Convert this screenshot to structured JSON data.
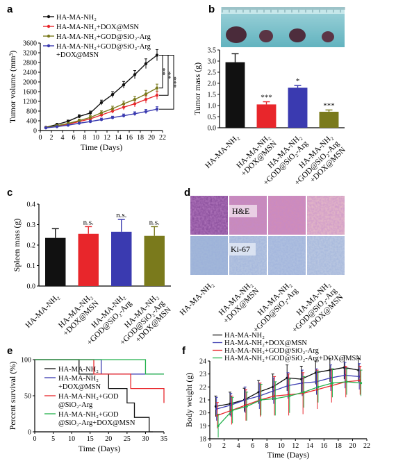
{
  "panels": {
    "a": "a",
    "b": "b",
    "c": "c",
    "d": "d",
    "e": "e",
    "f": "f"
  },
  "colors": {
    "black": "#111111",
    "red": "#e8262b",
    "blue": "#3a3ab0",
    "olive": "#7a7a1c",
    "green": "#22b14c",
    "axis": "#000000"
  },
  "chart_data": [
    {
      "id": "a",
      "type": "line",
      "xlabel": "Time (Days)",
      "ylabel": "Tumor volume (mm³)",
      "xlim": [
        0,
        22
      ],
      "ylim": [
        0,
        3600
      ],
      "xticks": [
        "0",
        "2",
        "4",
        "6",
        "8",
        "10",
        "12",
        "14",
        "16",
        "18",
        "20",
        "22"
      ],
      "yticks": [
        "0",
        "400",
        "800",
        "1200",
        "1600",
        "2000",
        "2400",
        "2800",
        "3200",
        "3600"
      ],
      "x": [
        1,
        3,
        5,
        7,
        9,
        11,
        13,
        15,
        17,
        19,
        21
      ],
      "series": [
        {
          "name": "HA-MA-NH₂",
          "color": "#111111",
          "values": [
            130,
            250,
            380,
            580,
            720,
            1150,
            1480,
            1880,
            2300,
            2750,
            3100
          ],
          "err": [
            30,
            40,
            50,
            70,
            80,
            100,
            120,
            140,
            170,
            200,
            230
          ]
        },
        {
          "name": "HA-MA-NH₂+DOX@MSN",
          "color": "#e8262b",
          "values": [
            120,
            190,
            260,
            370,
            480,
            640,
            800,
            960,
            1100,
            1280,
            1450
          ],
          "err": [
            20,
            30,
            40,
            50,
            60,
            80,
            90,
            110,
            130,
            150,
            170
          ]
        },
        {
          "name": "HA-MA-NH₂+GOD@SiO₂-Arg",
          "color": "#7a7a1c",
          "values": [
            120,
            200,
            290,
            410,
            540,
            730,
            900,
            1100,
            1280,
            1500,
            1750
          ],
          "err": [
            20,
            30,
            40,
            60,
            70,
            80,
            100,
            110,
            130,
            150,
            160
          ]
        },
        {
          "name": "HA-MA-NH₂+GOD@SiO₂-Arg +DOX@MSN",
          "color": "#3a3ab0",
          "values": [
            110,
            160,
            220,
            300,
            370,
            450,
            530,
            610,
            690,
            780,
            880
          ],
          "err": [
            15,
            20,
            30,
            40,
            50,
            60,
            60,
            70,
            80,
            90,
            100
          ]
        }
      ],
      "significance": [
        "**",
        "**",
        "***"
      ]
    },
    {
      "id": "b",
      "type": "bar",
      "ylabel": "Tumor mass (g)",
      "ylim": [
        0,
        3.5
      ],
      "yticks": [
        "0.0",
        "0.5",
        "1.0",
        "1.5",
        "2.0",
        "2.5",
        "3.0",
        "3.5"
      ],
      "categories": [
        [
          "HA-MA-NH₂"
        ],
        [
          "HA-MA-NH₂",
          "+DOX@MSN"
        ],
        [
          "HA-MA-NH₂",
          "+GOD@SiO₂-Arg"
        ],
        [
          "HA-MA-NH₂",
          "+GOD@SiO₂-Arg",
          "+DOX@MSN"
        ]
      ],
      "values": [
        2.95,
        1.05,
        1.8,
        0.72
      ],
      "err": [
        0.38,
        0.12,
        0.1,
        0.08
      ],
      "colors": [
        "#111111",
        "#e8262b",
        "#3a3ab0",
        "#7a7a1c"
      ],
      "significance": [
        "",
        "***",
        "*",
        "***"
      ]
    },
    {
      "id": "c",
      "type": "bar",
      "ylabel": "Spleen mass (g)",
      "ylim": [
        0,
        0.4
      ],
      "yticks": [
        "0.0",
        "0.1",
        "0.2",
        "0.3",
        "0.4"
      ],
      "categories": [
        [
          "HA-MA-NH₂"
        ],
        [
          "HA-MA-NH₂",
          "+DOX@MSN"
        ],
        [
          "HA-MA-NH₂",
          "+GOD@SiO₂-Arg"
        ],
        [
          "HA-MA-NH₂",
          "+GOD@SiO₂-Arg",
          "+DOX@MSN"
        ]
      ],
      "values": [
        0.235,
        0.255,
        0.265,
        0.245
      ],
      "err": [
        0.045,
        0.035,
        0.06,
        0.045
      ],
      "colors": [
        "#111111",
        "#e8262b",
        "#3a3ab0",
        "#7a7a1c"
      ],
      "significance": [
        "",
        "n.s.",
        "n.s.",
        "n.s."
      ]
    },
    {
      "id": "e",
      "type": "line",
      "xlabel": "Time (Days)",
      "ylabel": "Percent survival (%)",
      "xlim": [
        0,
        35
      ],
      "ylim": [
        0,
        100
      ],
      "xticks": [
        "0",
        "5",
        "10",
        "15",
        "20",
        "25",
        "30",
        "35"
      ],
      "yticks": [
        "0",
        "50",
        "100"
      ],
      "series": [
        {
          "name": "HA-MA-NH₂",
          "color": "#111111",
          "steps": [
            [
              0,
              100
            ],
            [
              12,
              100
            ],
            [
              12,
              80
            ],
            [
              20,
              80
            ],
            [
              20,
              60
            ],
            [
              25,
              60
            ],
            [
              25,
              40
            ],
            [
              27,
              40
            ],
            [
              27,
              20
            ],
            [
              31,
              20
            ],
            [
              31,
              0
            ],
            [
              32,
              0
            ]
          ]
        },
        {
          "name": "HA-MA-NH₂ +DOX@MSN",
          "color": "#3a3ab0",
          "steps": [
            [
              0,
              100
            ],
            [
              18,
              100
            ],
            [
              18,
              80
            ],
            [
              35,
              80
            ]
          ]
        },
        {
          "name": "HA-MA-NH₂+GOD @SiO₂-Arg",
          "color": "#e8262b",
          "steps": [
            [
              0,
              100
            ],
            [
              16,
              100
            ],
            [
              16,
              80
            ],
            [
              26,
              80
            ],
            [
              26,
              60
            ],
            [
              35,
              60
            ],
            [
              35,
              40
            ]
          ]
        },
        {
          "name": "HA-MA-NH₂+GOD @SiO₂-Arg+DOX@MSN",
          "color": "#22b14c",
          "steps": [
            [
              0,
              100
            ],
            [
              30,
              100
            ],
            [
              30,
              80
            ],
            [
              35,
              80
            ]
          ]
        }
      ]
    },
    {
      "id": "f",
      "type": "line",
      "xlabel": "Time (Days)",
      "ylabel": "Body weight (g)",
      "xlim": [
        0,
        22
      ],
      "ylim": [
        18,
        24
      ],
      "xticks": [
        "0",
        "2",
        "4",
        "6",
        "8",
        "10",
        "12",
        "14",
        "16",
        "18",
        "20",
        "22"
      ],
      "yticks": [
        "18",
        "19",
        "20",
        "21",
        "22",
        "23",
        "24"
      ],
      "x": [
        1,
        3,
        5,
        7,
        9,
        11,
        13,
        15,
        17,
        19,
        21
      ],
      "series": [
        {
          "name": "HA-MA-NH₂",
          "color": "#111111",
          "values": [
            20.5,
            20.7,
            21.0,
            21.6,
            22.0,
            22.7,
            22.6,
            23.1,
            23.3,
            23.5,
            23.3
          ],
          "err": [
            0.8,
            0.9,
            0.9,
            0.9,
            1.0,
            1.0,
            1.0,
            0.9,
            0.9,
            0.9,
            0.9
          ]
        },
        {
          "name": "HA-MA-NH₂+DOX@MSN",
          "color": "#3a3ab0",
          "values": [
            20.3,
            20.6,
            21.0,
            21.3,
            21.7,
            22.1,
            22.3,
            22.4,
            22.7,
            22.9,
            22.8
          ],
          "err": [
            0.9,
            0.9,
            1.0,
            1.0,
            1.0,
            1.0,
            1.0,
            1.0,
            1.0,
            1.0,
            1.0
          ]
        },
        {
          "name": "HA-MA-NH₂+GOD@SiO₂-Arg",
          "color": "#e8262b",
          "values": [
            19.8,
            20.2,
            20.6,
            21.0,
            21.3,
            21.4,
            21.5,
            21.8,
            22.1,
            22.4,
            22.5
          ],
          "err": [
            1.0,
            1.1,
            1.2,
            1.3,
            1.5,
            1.6,
            1.6,
            1.5,
            1.3,
            1.2,
            1.1
          ]
        },
        {
          "name": "HA-MA-NH₂+GOD@SiO₂-Arg+DOX@MSN",
          "color": "#22b14c",
          "values": [
            19.0,
            20.2,
            20.5,
            21.0,
            21.1,
            21.3,
            21.6,
            22.0,
            22.3,
            22.4,
            22.3
          ],
          "err": [
            0.9,
            1.0,
            1.1,
            1.2,
            1.3,
            1.3,
            1.2,
            1.2,
            1.1,
            1.0,
            1.0
          ]
        }
      ]
    }
  ],
  "panel_d": {
    "rows": [
      "H&E",
      "Ki-67"
    ],
    "columns": [
      [
        "HA-MA-NH₂"
      ],
      [
        "HA-MA-NH₂",
        "+DOX@MSN"
      ],
      [
        "HA-MA-NH₂",
        "+GOD@SiO₂-Arg"
      ],
      [
        "HA-MA-NH₂",
        "+GOD@SiO₂-Arg",
        "+DOX@MSN"
      ]
    ]
  }
}
